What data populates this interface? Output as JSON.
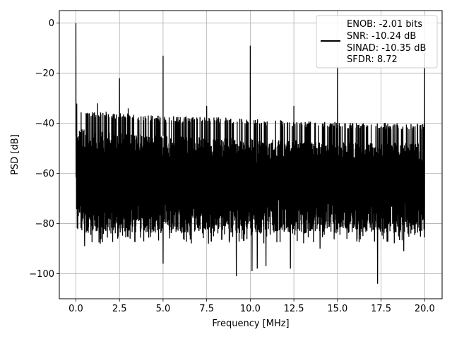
{
  "chart_data": {
    "type": "line",
    "title": "",
    "xlabel": "Frequency [MHz]",
    "ylabel": "PSD [dB]",
    "xlim": [
      -0.95,
      21.0
    ],
    "ylim": [
      -110,
      5
    ],
    "xticks": [
      0.0,
      2.5,
      5.0,
      7.5,
      10.0,
      12.5,
      15.0,
      17.5,
      20.0
    ],
    "xtick_labels": [
      "0.0",
      "2.5",
      "5.0",
      "7.5",
      "10.0",
      "12.5",
      "15.0",
      "17.5",
      "20.0"
    ],
    "yticks": [
      0,
      -20,
      -40,
      -60,
      -80,
      -100
    ],
    "ytick_labels": [
      "0",
      "−20",
      "−40",
      "−60",
      "−80",
      "−100"
    ],
    "grid": true,
    "legend_placement": "top-right",
    "legend": {
      "lines": [
        "ENOB: -2.01 bits",
        "SNR: -10.24 dB",
        "SINAD: -10.35 dB",
        "SFDR: 8.72"
      ]
    },
    "series": [
      {
        "color": "#000000",
        "noise_ceiling": {
          "x": [
            0.1,
            1.0,
            5.0,
            10.0,
            15.0,
            20.0
          ],
          "y": [
            -34,
            -35,
            -37,
            -38,
            -39.5,
            -40
          ]
        },
        "noise_median": -60,
        "noise_floor_typical": -82,
        "peaks": [
          {
            "x": 0.0,
            "y": 0
          },
          {
            "x": 1.25,
            "y": -32
          },
          {
            "x": 2.5,
            "y": -22
          },
          {
            "x": 3.0,
            "y": -34
          },
          {
            "x": 5.0,
            "y": -13
          },
          {
            "x": 7.5,
            "y": -33
          },
          {
            "x": 10.0,
            "y": -9
          },
          {
            "x": 12.5,
            "y": -33
          },
          {
            "x": 15.0,
            "y": -17
          },
          {
            "x": 20.0,
            "y": -12
          }
        ],
        "dips": [
          {
            "x": 0.5,
            "y": -89
          },
          {
            "x": 1.4,
            "y": -88
          },
          {
            "x": 2.4,
            "y": -86
          },
          {
            "x": 5.0,
            "y": -96
          },
          {
            "x": 7.6,
            "y": -88
          },
          {
            "x": 9.2,
            "y": -101
          },
          {
            "x": 10.1,
            "y": -99
          },
          {
            "x": 10.4,
            "y": -98
          },
          {
            "x": 10.9,
            "y": -97
          },
          {
            "x": 12.3,
            "y": -98
          },
          {
            "x": 14.0,
            "y": -90
          },
          {
            "x": 17.3,
            "y": -104
          },
          {
            "x": 18.8,
            "y": -91
          }
        ]
      }
    ]
  }
}
